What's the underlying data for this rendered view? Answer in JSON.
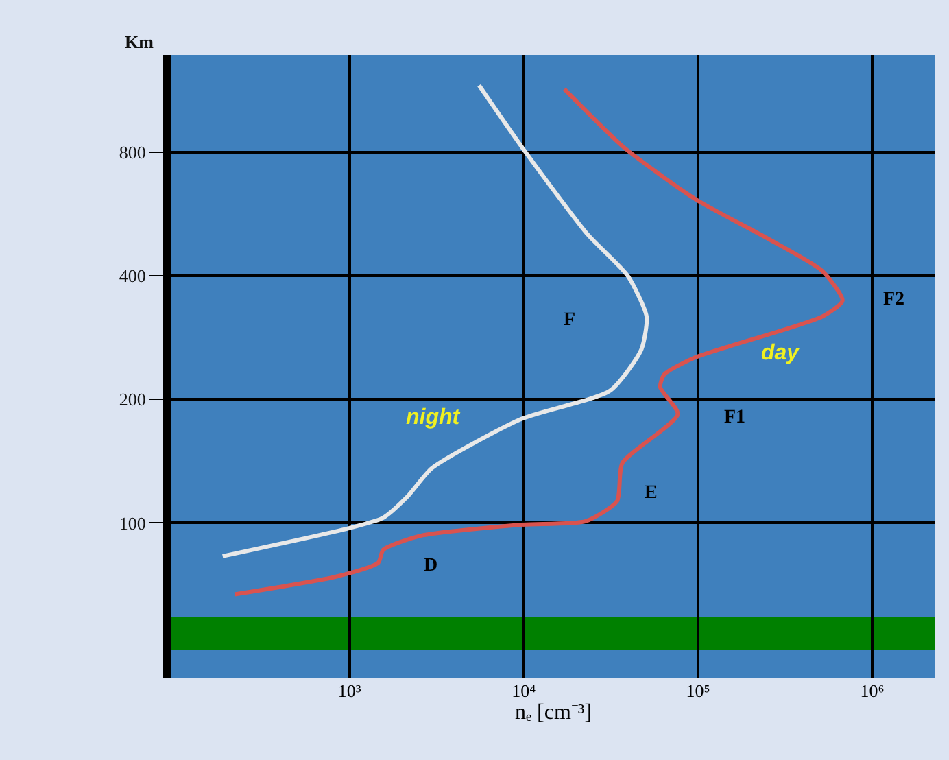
{
  "chart_data": {
    "type": "line",
    "xlabel": "nₑ [cm⁻³]",
    "ylabel": "Km",
    "log": "xy",
    "grid": true,
    "legend": false,
    "marker": "none",
    "line_style": "solid",
    "xlim": [
      95,
      2300000
    ],
    "ylim": [
      42,
      1380
    ],
    "xticks": [
      {
        "value": 1000,
        "label": "10³"
      },
      {
        "value": 10000,
        "label": "10⁴"
      },
      {
        "value": 100000,
        "label": "10⁵"
      },
      {
        "value": 1000000,
        "label": "10⁶"
      }
    ],
    "yticks": [
      100,
      200,
      400,
      800
    ],
    "series": [
      {
        "name": "night",
        "color": "#e8e8e8",
        "x": [
          5540,
          10000,
          23100,
          39500,
          50700,
          47200,
          31300,
          9640,
          2970,
          2150,
          1560,
          982,
          187
        ],
        "values": [
          1163,
          811,
          506,
          400,
          318,
          264,
          210,
          179,
          136,
          116,
          103,
          97,
          83
        ]
      },
      {
        "name": "day",
        "color": "#d9534f",
        "x": [
          17100,
          37500,
          96400,
          253000,
          516000,
          675000,
          516000,
          96400,
          64000,
          60700,
          76600,
          36800,
          34300,
          22700,
          9640,
          2530,
          1560,
          1460,
          836,
          219
        ],
        "values": [
          1139,
          822,
          615,
          492,
          411,
          348,
          318,
          253,
          230,
          214,
          184,
          140,
          113,
          101,
          99,
          93,
          86,
          80,
          74,
          67
        ]
      }
    ],
    "bands": [
      {
        "axis": "y",
        "from": 49,
        "to": 59,
        "color": "#008000"
      }
    ],
    "annotations": [
      "F",
      "F1",
      "F2",
      "E",
      "D"
    ]
  }
}
